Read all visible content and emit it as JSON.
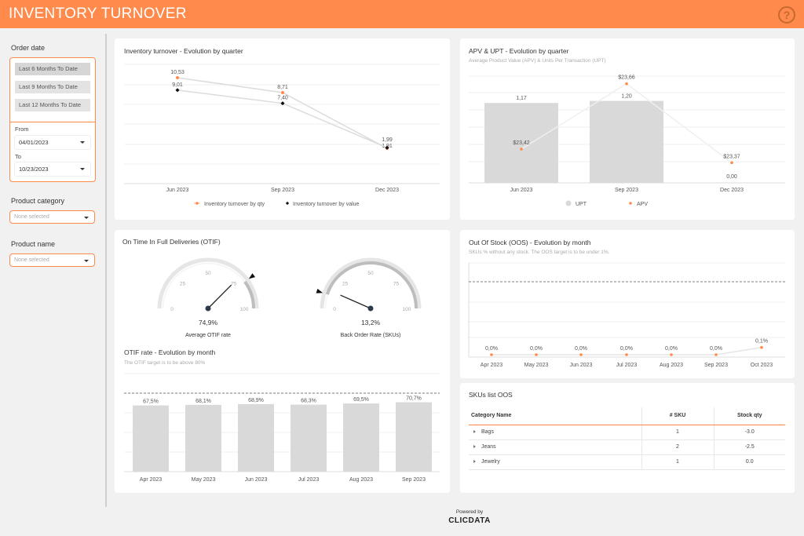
{
  "header": {
    "title": "INVENTORY TURNOVER",
    "help_icon": "question-circle-icon"
  },
  "sidebar": {
    "order_date_label": "Order date",
    "presets": [
      "Last 6 Months To Date",
      "Last 9 Months To Date",
      "Last 12 Months To Date"
    ],
    "from_label": "From",
    "from_value": "04/01/2023",
    "to_label": "To",
    "to_value": "10/23/2023",
    "product_category_label": "Product category",
    "product_category_value": "None selected",
    "product_name_label": "Product name",
    "product_name_value": "None selected"
  },
  "turnover": {
    "title": "Inventory turnover - Evolution by quarter",
    "chart_data": {
      "type": "line",
      "categories": [
        "Jun 2023",
        "Sep 2023",
        "Dec 2023"
      ],
      "series": [
        {
          "name": "Inventory turnover by qty",
          "values": [
            10.53,
            8.71,
            1.91
          ],
          "labels": [
            "10,53",
            "8,71",
            "1,91"
          ],
          "color": "#ff8a4c"
        },
        {
          "name": "Inventory turnover by value",
          "values": [
            9.01,
            7.4,
            1.99
          ],
          "labels": [
            "9,01",
            "7,40",
            "1,99"
          ],
          "color": "#111111"
        }
      ]
    }
  },
  "apv_upt": {
    "title": "APV & UPT - Evolution by quarter",
    "subtitle": "Average Product Value (APV) & Units Per Transaction (UPT)",
    "chart_data": {
      "type": "bar",
      "categories": [
        "Jun 2023",
        "Sep 2023",
        "Dec 2023"
      ],
      "series": [
        {
          "name": "UPT",
          "values": [
            1.17,
            1.2,
            0.0
          ],
          "labels": [
            "1,17",
            "1,20",
            "0,00"
          ],
          "color": "#d9d9d9"
        },
        {
          "name": "APV",
          "values": [
            23.42,
            23.66,
            23.37
          ],
          "labels": [
            "$23,42",
            "$23,66",
            "$23,37"
          ],
          "color": "#ff8a4c"
        }
      ]
    }
  },
  "otif": {
    "title": "On Time In Full Deliveries (OTIF)",
    "gauges": [
      {
        "value": 74.9,
        "value_label": "74,9%",
        "caption": "Average OTIF rate",
        "target": 80
      },
      {
        "value": 13.2,
        "value_label": "13,2%",
        "caption": "Back Order Rate (SKUs)",
        "target": 10
      }
    ],
    "gauge_ticks": [
      "0",
      "25",
      "50",
      "75",
      "100"
    ],
    "rate_title": "OTIF rate - Evolution by month",
    "rate_subtitle": "The OTIF target is to be above 80%",
    "chart_data": {
      "type": "bar",
      "categories": [
        "Apr 2023",
        "May 2023",
        "Jun 2023",
        "Jul 2023",
        "Aug 2023",
        "Sep 2023"
      ],
      "values": [
        67.5,
        68.1,
        68.9,
        68.3,
        69.5,
        70.7
      ],
      "labels": [
        "67,5%",
        "68,1%",
        "68,9%",
        "68,3%",
        "69,5%",
        "70,7%"
      ],
      "target": 80
    }
  },
  "oos": {
    "title": "Out Of Stock (OOS) - Evolution by month",
    "subtitle": "SKUs % without any stock. The OOS target is to be under 1%.",
    "chart_data": {
      "type": "line",
      "categories": [
        "Apr 2023",
        "May 2023",
        "Jun 2023",
        "Jul 2023",
        "Aug 2023",
        "Sep 2023",
        "Oct 2023"
      ],
      "values": [
        0.0,
        0.0,
        0.0,
        0.0,
        0.0,
        0.0,
        0.1
      ],
      "labels": [
        "0,0%",
        "0,0%",
        "0,0%",
        "0,0%",
        "0,0%",
        "0,0%",
        "0,1%"
      ],
      "target": 1
    }
  },
  "sku_list": {
    "title": "SKUs list OOS",
    "columns": [
      "Category Name",
      "# SKU",
      "Stock qty"
    ],
    "rows": [
      {
        "category": "Bags",
        "sku": "1",
        "stock": "-3.0"
      },
      {
        "category": "Jeans",
        "sku": "2",
        "stock": "-2.5"
      },
      {
        "category": "Jewelry",
        "sku": "1",
        "stock": "0.0"
      }
    ]
  },
  "footer": {
    "powered_by": "Powered by",
    "logo_text": "CLICDATA"
  },
  "colors": {
    "accent": "#ff8a4c",
    "bar": "#d9d9d9",
    "dark": "#111111"
  }
}
